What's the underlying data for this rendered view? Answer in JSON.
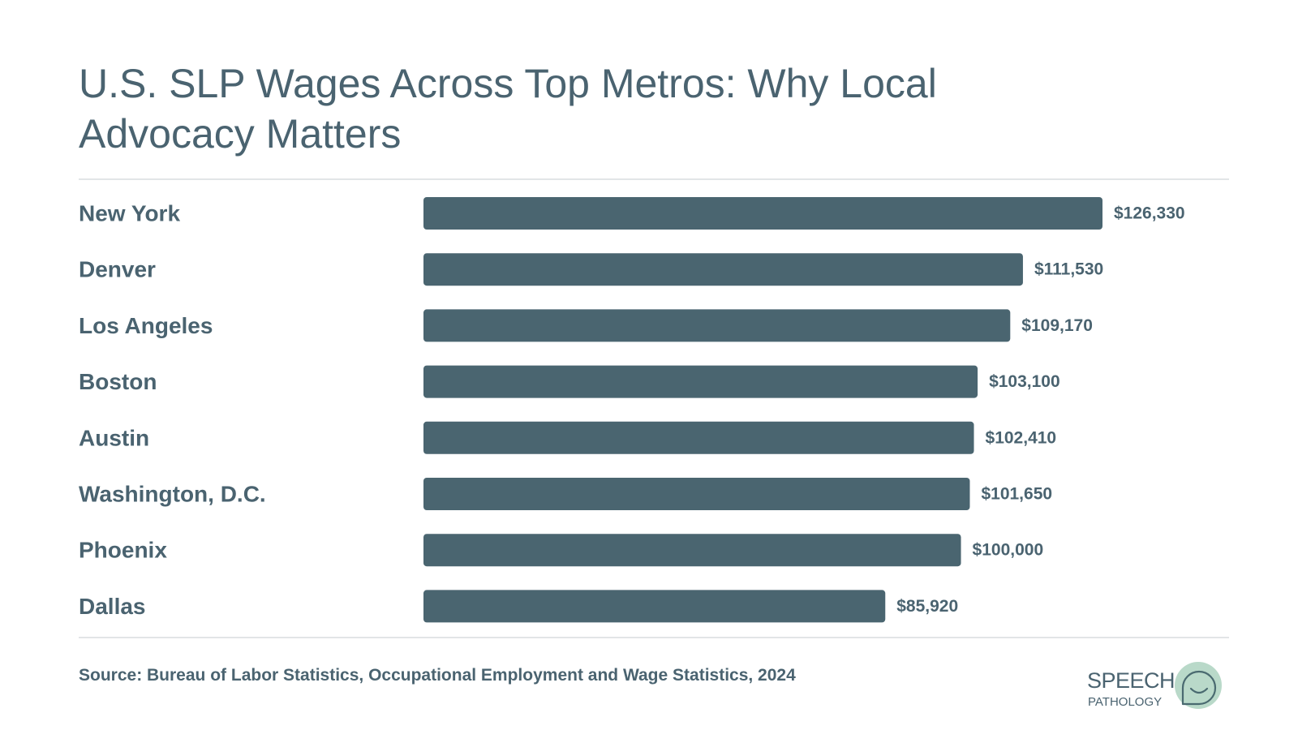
{
  "header": {
    "title": "U.S. SLP Wages Across Top Metros: Why Local Advocacy Matters"
  },
  "footer": {
    "source": "Source: Bureau of Labor Statistics, Occupational Employment and Wage Statistics, 2024",
    "logo_line_1": "SPEECH",
    "logo_line_2": "PATHOLOGY"
  },
  "colors": {
    "bar": "#4a6570",
    "text": "#4a6370",
    "rule": "#e2e5e7",
    "logo_circle": "#b9d9c9",
    "logo_stroke": "#4a6a70"
  },
  "chart_data": {
    "type": "bar",
    "orientation": "horizontal",
    "categories": [
      "New York",
      "Denver",
      "Los Angeles",
      "Boston",
      "Austin",
      "Washington, D.C.",
      "Phoenix",
      "Dallas"
    ],
    "values": [
      126330,
      111530,
      109170,
      103100,
      102410,
      101650,
      100000,
      85920
    ],
    "value_labels": [
      "$126,330",
      "$111,530",
      "$109,170",
      "$103,100",
      "$102,410",
      "$101,650",
      "$100,000",
      "$85,920"
    ],
    "xlim": [
      0,
      126330
    ],
    "grid": false,
    "legend": "none"
  }
}
